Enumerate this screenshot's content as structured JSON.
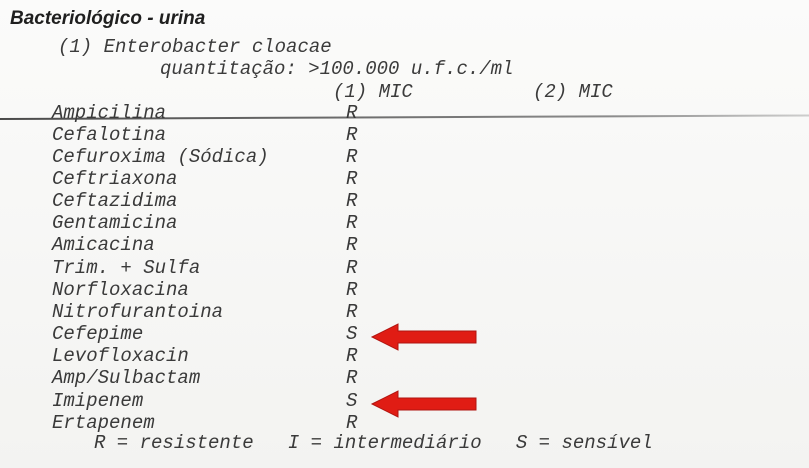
{
  "report": {
    "title": "Bacteriológico - urina",
    "organism": "(1) Enterobacter cloacae",
    "quantification": "quantitação: >100.000 u.f.c./ml",
    "header_col1": "(1) MIC",
    "header_col2": "(2) MIC",
    "legend": "R = resistente   I = intermediário   S = sensível",
    "antibiotics": [
      {
        "name": "Ampicilina",
        "result": "R"
      },
      {
        "name": "Cefalotina",
        "result": "R"
      },
      {
        "name": "Cefuroxima (Sódica)",
        "result": "R"
      },
      {
        "name": "Ceftriaxona",
        "result": "R"
      },
      {
        "name": "Ceftazidima",
        "result": "R"
      },
      {
        "name": "Gentamicina",
        "result": "R"
      },
      {
        "name": "Amicacina",
        "result": "R"
      },
      {
        "name": "Trim. + Sulfa",
        "result": "R"
      },
      {
        "name": "Norfloxacina",
        "result": "R"
      },
      {
        "name": "Nitrofurantoina",
        "result": "R"
      },
      {
        "name": "Cefepime",
        "result": "S"
      },
      {
        "name": "Levofloxacin",
        "result": "R"
      },
      {
        "name": "Amp/Sulbactam",
        "result": "R"
      },
      {
        "name": "Imipenem",
        "result": "S"
      },
      {
        "name": "Ertapenem",
        "result": "R"
      }
    ]
  },
  "annotation": {
    "arrow_color": "#e01c14",
    "arrow_icon": "left-arrow-icon"
  }
}
